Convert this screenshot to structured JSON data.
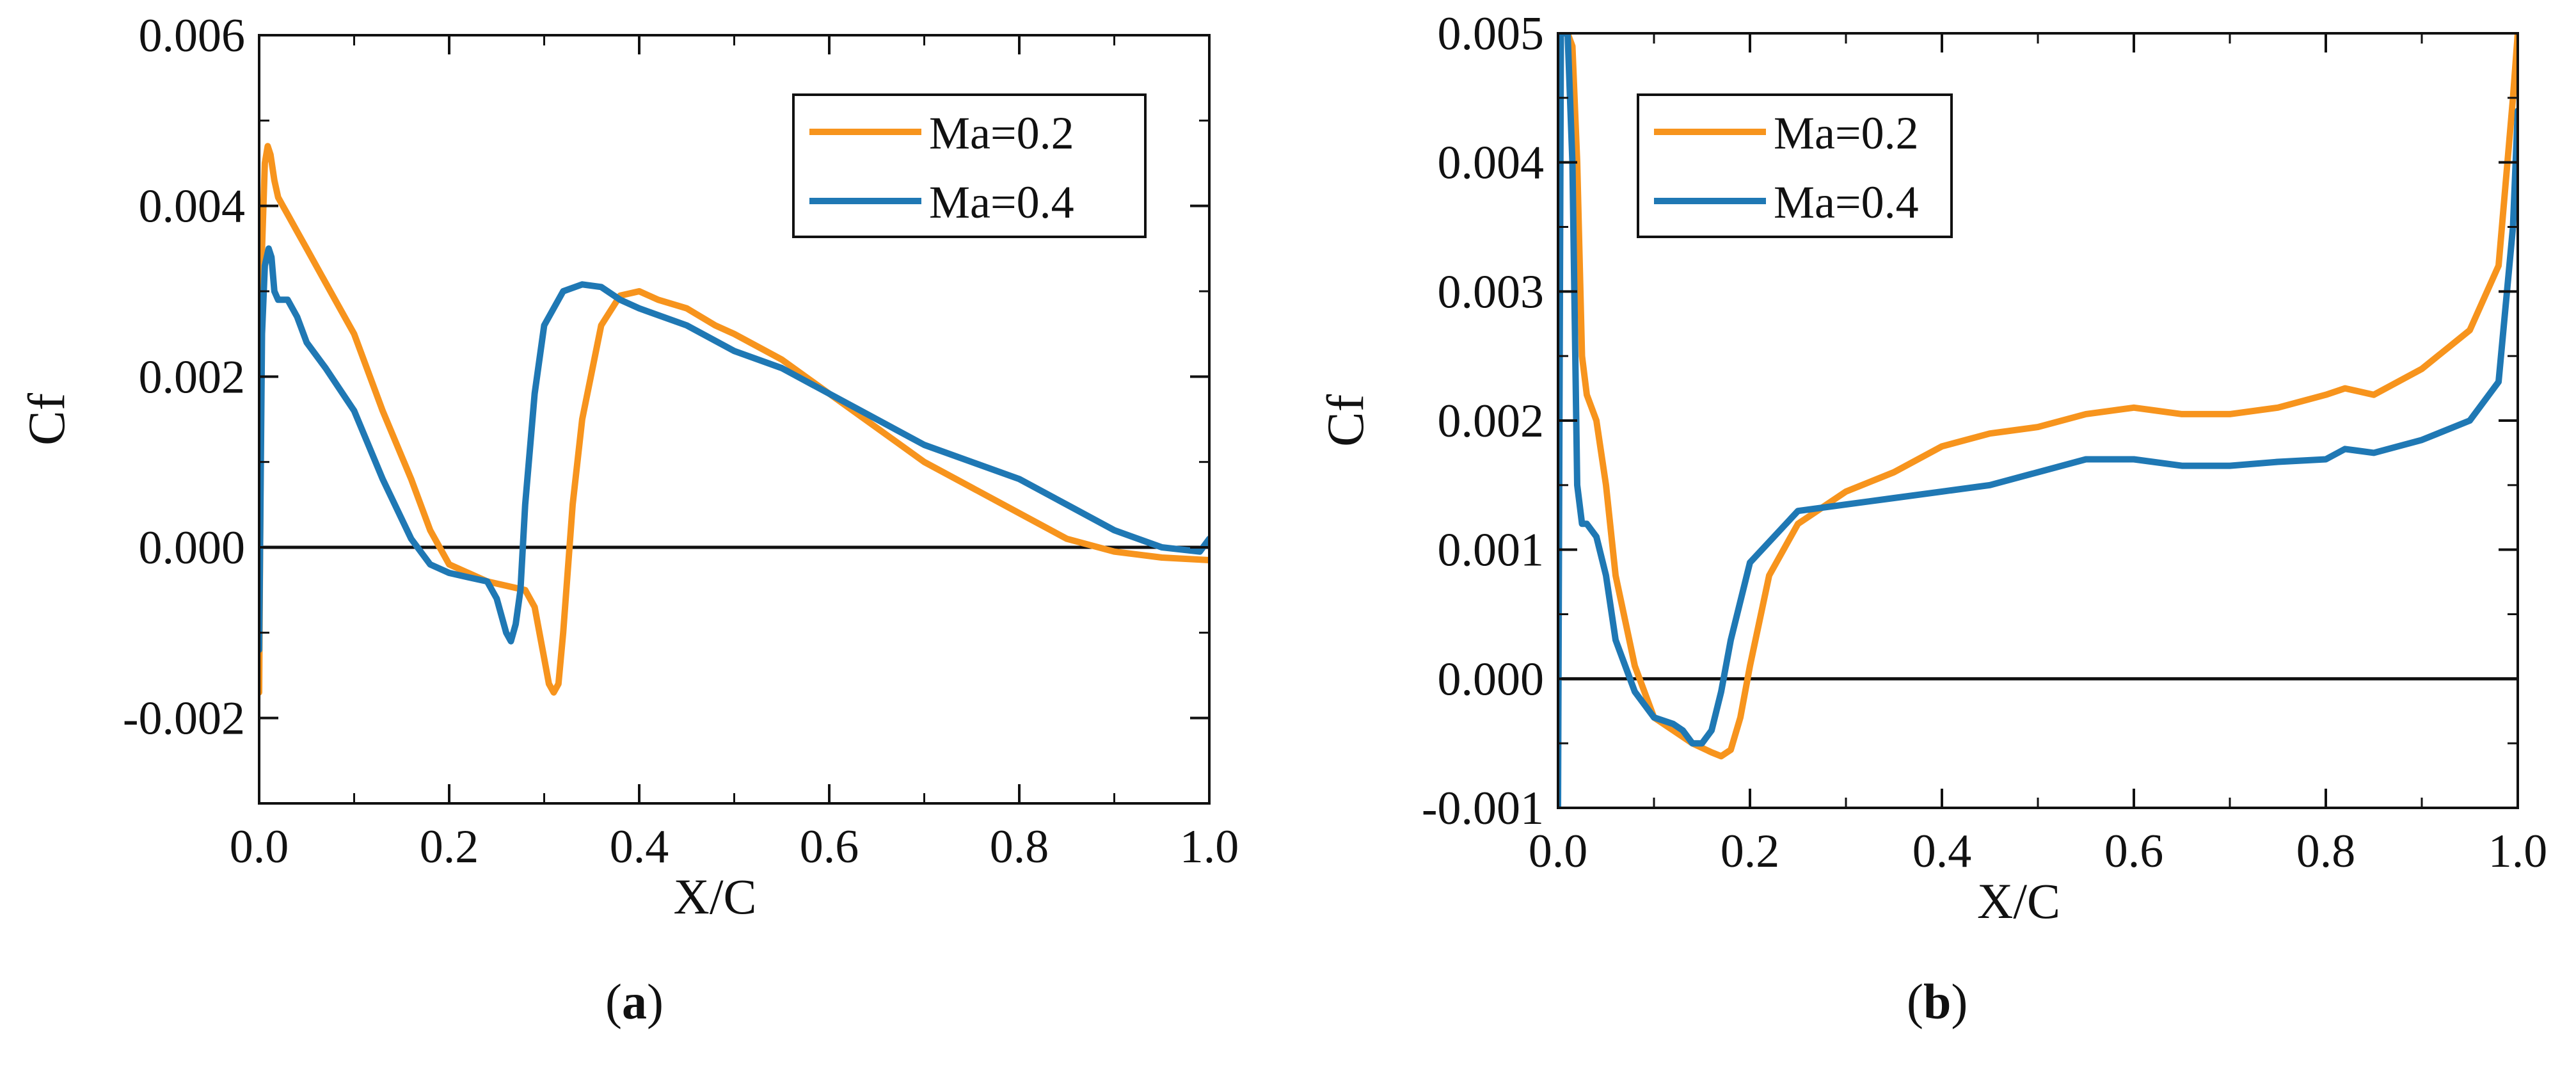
{
  "colors": {
    "ma02": "#F7941D",
    "ma04": "#1F78B4",
    "axis": "#111111",
    "zero": "#111111"
  },
  "panels": [
    {
      "letter": "a"
    },
    {
      "letter": "b"
    }
  ],
  "chart_data": [
    {
      "type": "line",
      "xlabel": "X/C",
      "ylabel": "Cf",
      "xlim": [
        0,
        1
      ],
      "ylim": [
        -0.003,
        0.006
      ],
      "xticks": [
        0,
        0.2,
        0.4,
        0.6,
        0.8,
        1.0
      ],
      "xtick_labels": [
        "0.0",
        "0.2",
        "0.4",
        "0.6",
        "0.8",
        "1.0"
      ],
      "yticks": [
        -0.002,
        0,
        0.002,
        0.004,
        0.006
      ],
      "ytick_labels": [
        "-0.002",
        "0.000",
        "0.002",
        "0.004",
        "0.006"
      ],
      "legend": "top-right",
      "reference_line_y": 0,
      "series": [
        {
          "name": "Ma=0.2",
          "color": "#F7941D",
          "x": [
            0.0,
            0.003,
            0.006,
            0.009,
            0.012,
            0.016,
            0.02,
            0.025,
            0.03,
            0.04,
            0.05,
            0.07,
            0.1,
            0.13,
            0.16,
            0.18,
            0.2,
            0.22,
            0.24,
            0.26,
            0.28,
            0.29,
            0.3,
            0.305,
            0.31,
            0.315,
            0.32,
            0.33,
            0.34,
            0.36,
            0.38,
            0.4,
            0.42,
            0.45,
            0.48,
            0.5,
            0.55,
            0.6,
            0.65,
            0.7,
            0.75,
            0.8,
            0.85,
            0.9,
            0.95,
            1.0
          ],
          "y": [
            -0.0017,
            0.0035,
            0.0045,
            0.0047,
            0.0046,
            0.0043,
            0.0041,
            0.004,
            0.0039,
            0.0037,
            0.0035,
            0.0031,
            0.0025,
            0.0016,
            0.0008,
            0.0002,
            -0.0002,
            -0.0003,
            -0.0004,
            -0.00045,
            -0.0005,
            -0.0007,
            -0.0013,
            -0.0016,
            -0.0017,
            -0.0016,
            -0.001,
            0.0005,
            0.0015,
            0.0026,
            0.00295,
            0.003,
            0.0029,
            0.0028,
            0.0026,
            0.0025,
            0.0022,
            0.0018,
            0.0014,
            0.001,
            0.0007,
            0.0004,
            0.0001,
            -5e-05,
            -0.00012,
            -0.00015
          ]
        },
        {
          "name": "Ma=0.4",
          "color": "#1F78B4",
          "x": [
            0.0,
            0.003,
            0.006,
            0.01,
            0.013,
            0.016,
            0.02,
            0.03,
            0.04,
            0.05,
            0.07,
            0.1,
            0.13,
            0.16,
            0.18,
            0.2,
            0.22,
            0.24,
            0.25,
            0.26,
            0.265,
            0.27,
            0.275,
            0.28,
            0.29,
            0.3,
            0.32,
            0.34,
            0.36,
            0.38,
            0.4,
            0.45,
            0.5,
            0.55,
            0.6,
            0.65,
            0.7,
            0.75,
            0.8,
            0.85,
            0.9,
            0.95,
            0.99,
            1.0
          ],
          "y": [
            -0.0012,
            0.0025,
            0.0033,
            0.0035,
            0.0034,
            0.003,
            0.0029,
            0.0029,
            0.0027,
            0.0024,
            0.0021,
            0.0016,
            0.0008,
            0.0001,
            -0.0002,
            -0.0003,
            -0.00035,
            -0.0004,
            -0.0006,
            -0.001,
            -0.0011,
            -0.0009,
            -0.0005,
            0.0005,
            0.0018,
            0.0026,
            0.003,
            0.00308,
            0.00305,
            0.0029,
            0.0028,
            0.0026,
            0.0023,
            0.0021,
            0.0018,
            0.0015,
            0.0012,
            0.001,
            0.0008,
            0.0005,
            0.0002,
            0.0,
            -5e-05,
            0.0001
          ]
        }
      ]
    },
    {
      "type": "line",
      "xlabel": "X/C",
      "ylabel": "Cf",
      "xlim": [
        0,
        1
      ],
      "ylim": [
        -0.001,
        0.005
      ],
      "xticks": [
        0,
        0.2,
        0.4,
        0.6,
        0.8,
        1.0
      ],
      "xtick_labels": [
        "0.0",
        "0.2",
        "0.4",
        "0.6",
        "0.8",
        "1.0"
      ],
      "yticks": [
        -0.001,
        0,
        0.001,
        0.002,
        0.003,
        0.004,
        0.005
      ],
      "ytick_labels": [
        "-0.001",
        "0.000",
        "0.001",
        "0.002",
        "0.003",
        "0.004",
        "0.005"
      ],
      "legend": "top-left",
      "reference_line_y": 0,
      "series": [
        {
          "name": "Ma=0.2",
          "color": "#F7941D",
          "x": [
            0.0,
            0.003,
            0.006,
            0.01,
            0.015,
            0.02,
            0.025,
            0.03,
            0.04,
            0.05,
            0.06,
            0.08,
            0.1,
            0.12,
            0.14,
            0.16,
            0.17,
            0.18,
            0.19,
            0.2,
            0.22,
            0.25,
            0.3,
            0.35,
            0.4,
            0.45,
            0.5,
            0.55,
            0.6,
            0.65,
            0.7,
            0.75,
            0.8,
            0.82,
            0.85,
            0.9,
            0.95,
            0.98,
            0.995,
            1.0
          ],
          "y": [
            0.005,
            0.005,
            0.005,
            0.005,
            0.0049,
            0.004,
            0.0025,
            0.0022,
            0.002,
            0.0015,
            0.0008,
            0.0001,
            -0.0003,
            -0.0004,
            -0.0005,
            -0.00057,
            -0.0006,
            -0.00055,
            -0.0003,
            0.0001,
            0.0008,
            0.0012,
            0.00145,
            0.0016,
            0.0018,
            0.0019,
            0.00195,
            0.00205,
            0.0021,
            0.00205,
            0.00205,
            0.0021,
            0.0022,
            0.00225,
            0.0022,
            0.0024,
            0.0027,
            0.0032,
            0.0045,
            0.005
          ]
        },
        {
          "name": "Ma=0.4",
          "color": "#1F78B4",
          "x": [
            0.0,
            0.003,
            0.006,
            0.01,
            0.015,
            0.02,
            0.025,
            0.03,
            0.04,
            0.05,
            0.06,
            0.08,
            0.1,
            0.12,
            0.13,
            0.14,
            0.15,
            0.16,
            0.17,
            0.18,
            0.2,
            0.25,
            0.3,
            0.35,
            0.4,
            0.45,
            0.5,
            0.55,
            0.6,
            0.65,
            0.7,
            0.75,
            0.8,
            0.82,
            0.85,
            0.9,
            0.95,
            0.98,
            0.995,
            1.0
          ],
          "y": [
            -0.001,
            0.005,
            0.005,
            0.005,
            0.004,
            0.0015,
            0.0012,
            0.0012,
            0.0011,
            0.0008,
            0.0003,
            -0.0001,
            -0.0003,
            -0.00035,
            -0.0004,
            -0.0005,
            -0.0005,
            -0.0004,
            -0.0001,
            0.0003,
            0.0009,
            0.0013,
            0.00135,
            0.0014,
            0.00145,
            0.0015,
            0.0016,
            0.0017,
            0.0017,
            0.00165,
            0.00165,
            0.00168,
            0.0017,
            0.00178,
            0.00175,
            0.00185,
            0.002,
            0.0023,
            0.0035,
            0.0044
          ]
        }
      ]
    }
  ]
}
